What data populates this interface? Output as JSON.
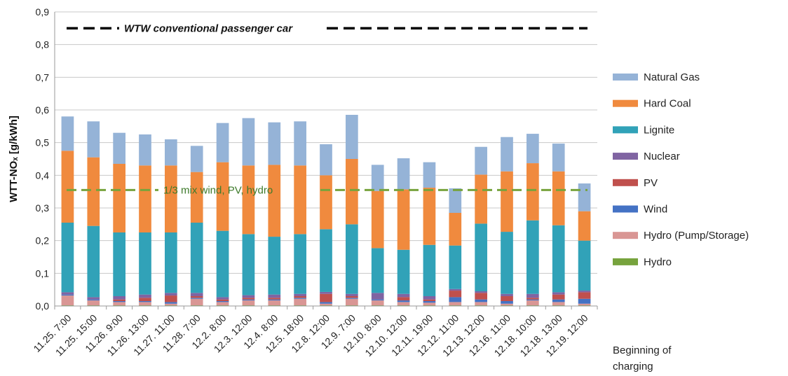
{
  "chart_data": {
    "type": "bar",
    "stacked": true,
    "ylabel": "WTT-NOₓ [g/kWh]",
    "xlabel_note": [
      "Beginning of",
      "charging"
    ],
    "ylim": [
      0,
      0.9
    ],
    "yticks": [
      "0,0",
      "0,1",
      "0,2",
      "0,3",
      "0,4",
      "0,5",
      "0,6",
      "0,7",
      "0,8",
      "0,9"
    ],
    "grid": true,
    "legend_position": "right",
    "categories": [
      "11.25. 7:00",
      "11.25. 15:00",
      "11.26. 9:00",
      "11.26. 13:00",
      "11.27. 11:00",
      "11.28. 7:00",
      "12.2. 8:00",
      "12.3. 12:00",
      "12.4. 8:00",
      "12.5. 18:00",
      "12.8. 12:00",
      "12.9. 7:00",
      "12.10. 8:00",
      "12.10. 12:00",
      "12.11. 19:00",
      "12.12. 11:00",
      "12.13. 12:00",
      "12.16. 11:00",
      "12.18. 10:00",
      "12.18. 13:00",
      "12.19. 12:00"
    ],
    "series": [
      {
        "name": "Hydro",
        "color": "#77a33d",
        "values": [
          0.002,
          0.002,
          0.002,
          0.002,
          0.002,
          0.002,
          0.002,
          0.002,
          0.002,
          0.002,
          0.002,
          0.002,
          0.002,
          0.002,
          0.002,
          0.002,
          0.002,
          0.002,
          0.002,
          0.002,
          0.002
        ]
      },
      {
        "name": "Hydro (Pump/Storage)",
        "color": "#d99694",
        "values": [
          0.03,
          0.015,
          0.01,
          0.01,
          0.005,
          0.02,
          0.01,
          0.015,
          0.015,
          0.02,
          0.005,
          0.02,
          0.015,
          0.01,
          0.008,
          0.01,
          0.01,
          0.005,
          0.015,
          0.01,
          0.005
        ]
      },
      {
        "name": "Wind",
        "color": "#4472c4",
        "values": [
          0.003,
          0.003,
          0.003,
          0.003,
          0.005,
          0.003,
          0.003,
          0.003,
          0.003,
          0.003,
          0.005,
          0.003,
          0.003,
          0.005,
          0.005,
          0.015,
          0.008,
          0.008,
          0.003,
          0.008,
          0.015
        ]
      },
      {
        "name": "PV",
        "color": "#c0504d",
        "values": [
          0.0,
          0.0,
          0.005,
          0.01,
          0.02,
          0.005,
          0.005,
          0.005,
          0.005,
          0.005,
          0.025,
          0.005,
          0.0,
          0.01,
          0.005,
          0.02,
          0.02,
          0.015,
          0.005,
          0.015,
          0.02
        ]
      },
      {
        "name": "Nuclear",
        "color": "#8064a2",
        "values": [
          0.007,
          0.007,
          0.01,
          0.01,
          0.008,
          0.01,
          0.007,
          0.008,
          0.01,
          0.007,
          0.006,
          0.007,
          0.02,
          0.01,
          0.01,
          0.005,
          0.005,
          0.007,
          0.012,
          0.007,
          0.005
        ]
      },
      {
        "name": "Lignite",
        "color": "#31a2b8",
        "values": [
          0.213,
          0.218,
          0.195,
          0.19,
          0.185,
          0.215,
          0.203,
          0.187,
          0.177,
          0.183,
          0.192,
          0.213,
          0.137,
          0.135,
          0.157,
          0.133,
          0.207,
          0.19,
          0.225,
          0.205,
          0.153
        ]
      },
      {
        "name": "Hard Coal",
        "color": "#f08a3e",
        "values": [
          0.22,
          0.21,
          0.21,
          0.205,
          0.205,
          0.155,
          0.21,
          0.21,
          0.22,
          0.21,
          0.165,
          0.2,
          0.175,
          0.185,
          0.175,
          0.1,
          0.15,
          0.185,
          0.175,
          0.165,
          0.09
        ]
      },
      {
        "name": "Natural Gas",
        "color": "#95b3d7",
        "values": [
          0.105,
          0.11,
          0.095,
          0.095,
          0.08,
          0.08,
          0.12,
          0.145,
          0.13,
          0.135,
          0.095,
          0.135,
          0.08,
          0.095,
          0.078,
          0.075,
          0.085,
          0.105,
          0.09,
          0.085,
          0.085
        ]
      }
    ],
    "reference_lines": [
      {
        "label": "WTW conventional passenger car",
        "y": 0.85,
        "color": "#000000",
        "style": "dashed"
      },
      {
        "label": "1/3 mix wind, PV, hydro",
        "y": 0.355,
        "color": "#77a33d",
        "style": "dashed"
      }
    ]
  }
}
